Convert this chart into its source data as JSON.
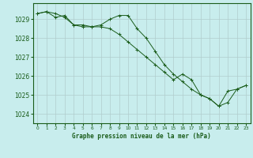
{
  "xlabel": "Graphe pression niveau de la mer (hPa)",
  "ylim": [
    1023.5,
    1029.85
  ],
  "xlim": [
    -0.5,
    23.5
  ],
  "yticks": [
    1024,
    1025,
    1026,
    1027,
    1028,
    1029
  ],
  "xticks": [
    0,
    1,
    2,
    3,
    4,
    5,
    6,
    7,
    8,
    9,
    10,
    11,
    12,
    13,
    14,
    15,
    16,
    17,
    18,
    19,
    20,
    21,
    22,
    23
  ],
  "background_color": "#c8eded",
  "grid_color": "#b0cccc",
  "line_color": "#1a5c1a",
  "series1": [
    1029.3,
    1029.4,
    1029.3,
    1029.1,
    1028.7,
    1028.6,
    1028.6,
    1028.7,
    1029.0,
    1029.2,
    1029.2,
    1028.5,
    1028.0,
    1027.3,
    1026.6,
    1026.1,
    1025.7,
    1025.3,
    1025.0,
    1024.8,
    1024.4,
    1024.6,
    1025.3,
    1025.5
  ],
  "series2": [
    1029.3,
    1029.4,
    1029.1,
    1029.2,
    1028.7,
    1028.7,
    1028.6,
    1028.6,
    1028.5,
    1028.2,
    1027.8,
    1027.4,
    1027.0,
    1026.6,
    1026.2,
    1025.8,
    1026.1,
    1025.8,
    1025.0,
    1024.8,
    1024.4,
    1025.2,
    1025.3,
    1025.5
  ]
}
